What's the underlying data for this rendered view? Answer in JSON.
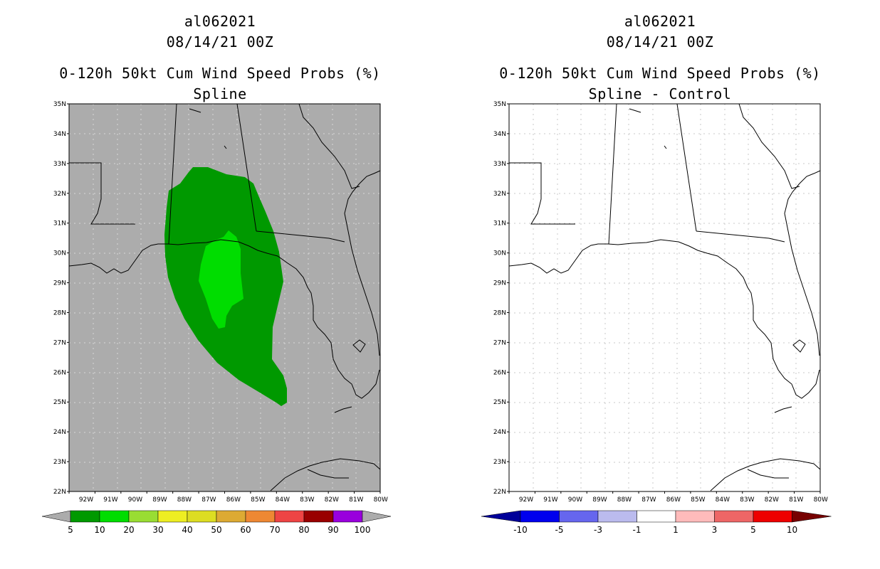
{
  "left": {
    "storm_id": "al062021",
    "datetime": "08/14/21 00Z",
    "product": "0-120h 50kt Cum Wind Speed Probs (%)",
    "subtitle": "Spline",
    "colors": {
      "background": "#acacac",
      "p5": "#009900",
      "p10": "#00dd00"
    },
    "contour_levels": [
      5,
      10
    ],
    "colorbar": {
      "labels": [
        "5",
        "10",
        "20",
        "30",
        "40",
        "50",
        "60",
        "70",
        "80",
        "90",
        "100"
      ],
      "colors": [
        "#009900",
        "#00dd00",
        "#99dd33",
        "#eeee22",
        "#dddd22",
        "#ddaa33",
        "#ee8833",
        "#ee4444",
        "#990000",
        "#9900dd"
      ],
      "end_color": "#acacac"
    }
  },
  "right": {
    "storm_id": "al062021",
    "datetime": "08/14/21 00Z",
    "product": "0-120h 50kt Cum Wind Speed Probs (%)",
    "subtitle": "Spline - Control",
    "colors": {
      "background": "#ffffff"
    },
    "colorbar": {
      "labels": [
        "-10",
        "-5",
        "-3",
        "-1",
        "1",
        "3",
        "5",
        "10"
      ],
      "colors": [
        "#0000ee",
        "#6666ee",
        "#bbbbee",
        "#ffffff",
        "#ffbbbb",
        "#ee6666",
        "#ee0000"
      ],
      "left_end_color": "#000099",
      "right_end_color": "#770000"
    }
  },
  "axes": {
    "lat_labels": [
      "35N",
      "34N",
      "33N",
      "32N",
      "31N",
      "30N",
      "29N",
      "28N",
      "27N",
      "26N",
      "25N",
      "24N",
      "23N",
      "22N"
    ],
    "lon_labels": [
      "92W",
      "91W",
      "90W",
      "89W",
      "88W",
      "87W",
      "86W",
      "85W",
      "84W",
      "83W",
      "82W",
      "81W",
      "80W"
    ]
  }
}
